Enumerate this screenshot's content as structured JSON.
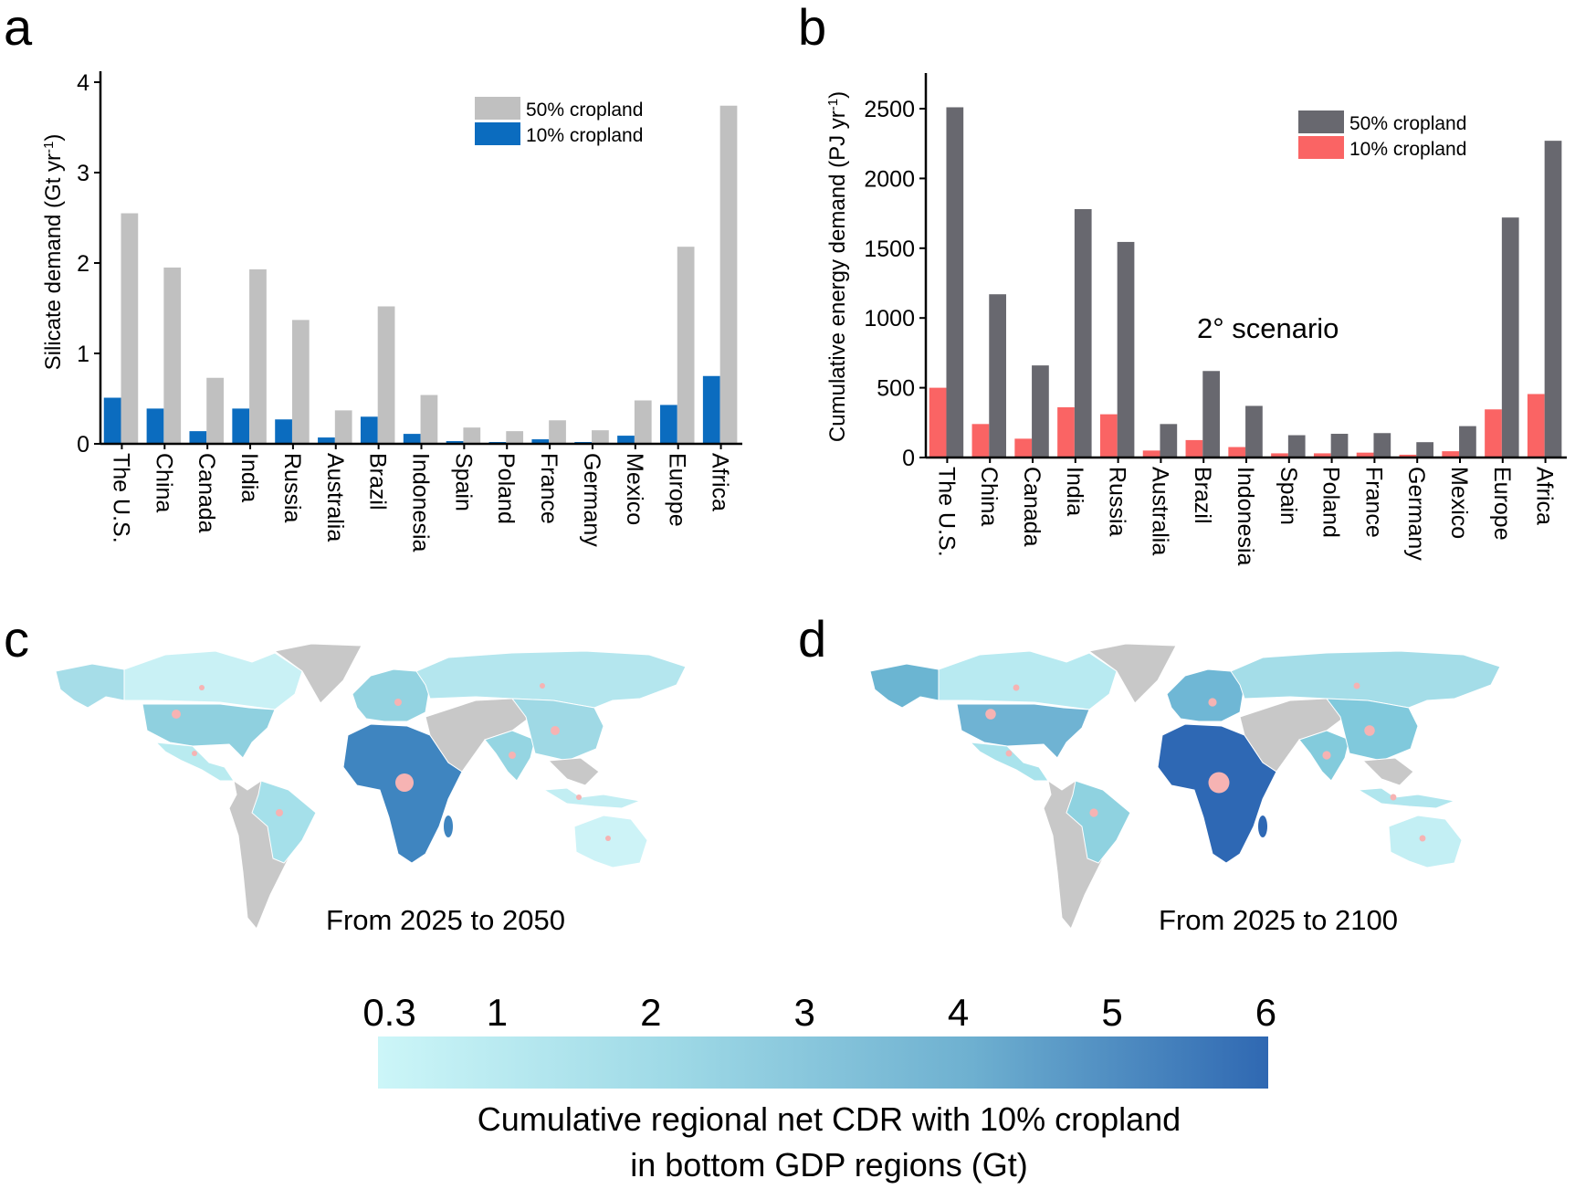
{
  "panels": {
    "a": "a",
    "b": "b",
    "c": "c",
    "d": "d"
  },
  "chart_data": [
    {
      "type": "bar",
      "panel": "a",
      "ylabel": "Silicate demand (Gt yr",
      "ylabel_sup": "-1",
      "ylabel_end": ")",
      "ylim": [
        0,
        4.2
      ],
      "yticks": [
        0,
        1,
        2,
        3,
        4
      ],
      "categories": [
        "The U.S.",
        "China",
        "Canada",
        "India",
        "Russia",
        "Australia",
        "Brazil",
        "Indonesia",
        "Spain",
        "Poland",
        "France",
        "Germany",
        "Mexico",
        "Europe",
        "Africa"
      ],
      "series": [
        {
          "name": "10% cropland",
          "color": "#0b6cbf",
          "values": [
            0.51,
            0.39,
            0.14,
            0.39,
            0.27,
            0.07,
            0.3,
            0.11,
            0.03,
            0.02,
            0.05,
            0.02,
            0.09,
            0.43,
            0.75
          ]
        },
        {
          "name": "50% cropland",
          "color": "#c0c0c0",
          "values": [
            2.55,
            1.95,
            0.73,
            1.93,
            1.37,
            0.37,
            1.52,
            0.54,
            0.18,
            0.14,
            0.26,
            0.15,
            0.48,
            2.18,
            3.74
          ]
        }
      ],
      "legend_placement": "top-right",
      "grid": false
    },
    {
      "type": "bar",
      "panel": "b",
      "ylabel": "Cumulative energy demand (PJ yr",
      "ylabel_sup": "-1",
      "ylabel_end": ")",
      "ylim": [
        0,
        2750
      ],
      "yticks": [
        0,
        500,
        1000,
        1500,
        2000,
        2500
      ],
      "annotation": "2° scenario",
      "categories": [
        "The U.S.",
        "China",
        "Canada",
        "India",
        "Russia",
        "Australia",
        "Brazil",
        "Indonesia",
        "Spain",
        "Poland",
        "France",
        "Germany",
        "Mexico",
        "Europe",
        "Africa"
      ],
      "series": [
        {
          "name": "10% cropland",
          "color": "#fa6464",
          "values": [
            500,
            240,
            135,
            360,
            310,
            50,
            125,
            75,
            30,
            30,
            35,
            20,
            45,
            345,
            455
          ]
        },
        {
          "name": "50% cropland",
          "color": "#68686f",
          "values": [
            2510,
            1170,
            660,
            1780,
            1545,
            240,
            620,
            370,
            160,
            170,
            175,
            110,
            225,
            1720,
            2270
          ]
        }
      ],
      "legend_placement": "top-right",
      "grid": false
    }
  ],
  "maps": [
    {
      "panel": "c",
      "caption": "From 2025 to 2050",
      "fills": {
        "alaska": "#a6dde8",
        "canada": "#c9f1f5",
        "greenland": "#c8c8c8",
        "us": "#8fd0df",
        "mexico": "#b9ebf0",
        "latam": "#c8c8c8",
        "brazil": "#a5e0ea",
        "europe": "#93d3e1",
        "russia": "#b4e6ee",
        "africa": "#3f85c0",
        "mideast": "#c8c8c8",
        "india": "#95d5e2",
        "china": "#9fd9e5",
        "seasia": "#c8c8c8",
        "indonesia": "#c2eef3",
        "australia": "#cdf3f7"
      }
    },
    {
      "panel": "d",
      "caption": "From 2025 to 2100",
      "fills": {
        "alaska": "#6bb5d2",
        "canada": "#b8eaf1",
        "greenland": "#c8c8c8",
        "us": "#6fb3d3",
        "mexico": "#a9e3ec",
        "latam": "#c8c8c8",
        "brazil": "#8fd2e0",
        "europe": "#6fb7d5",
        "russia": "#a4dde8",
        "africa": "#2e68b4",
        "mideast": "#c8c8c8",
        "india": "#83cbdc",
        "china": "#80c9dc",
        "seasia": "#c8c8c8",
        "indonesia": "#b0e6ee",
        "australia": "#c3eff4"
      }
    }
  ],
  "dot_color": "#f6b3b3",
  "colorbar": {
    "ticks": [
      "0.3",
      "1",
      "2",
      "3",
      "4",
      "5",
      "6"
    ],
    "tick_values": [
      0.3,
      1,
      2,
      3,
      4,
      5,
      6
    ],
    "colors": [
      "#ccf6f8",
      "#9ed9e6",
      "#6eb0d0",
      "#2f68b2"
    ],
    "title_line1": "Cumulative regional net CDR with 10% cropland",
    "title_line2": "in bottom GDP regions (Gt)"
  }
}
